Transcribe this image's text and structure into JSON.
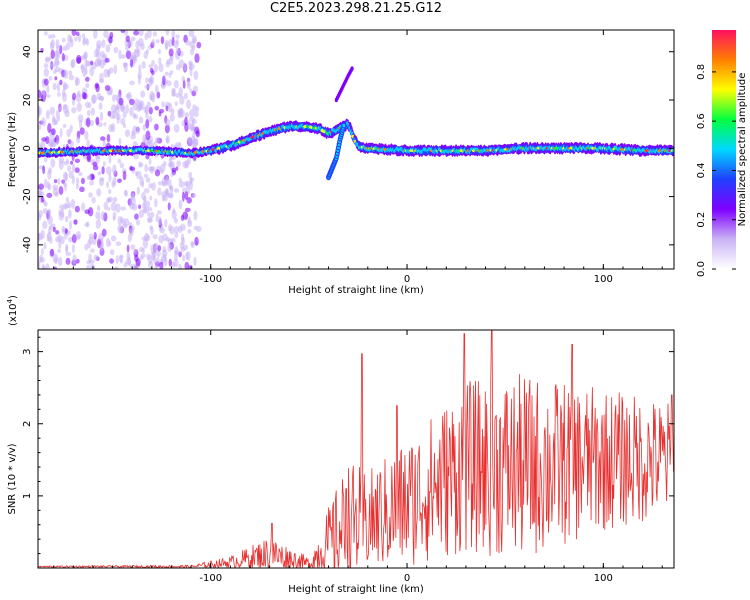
{
  "title": "C2E5.2023.298.21.25.G12",
  "chart_data": [
    {
      "type": "heatmap",
      "xlabel": "Height of straight line (km)",
      "ylabel": "Frequency (Hz)",
      "xlim": [
        -188,
        136
      ],
      "ylim": [
        -50,
        49
      ],
      "x_ticks": [
        -100,
        0,
        100
      ],
      "y_ticks": [
        -40,
        -20,
        0,
        20,
        40
      ],
      "x_tick_labels": [
        "-100",
        "0",
        "100"
      ],
      "y_tick_labels": [
        "-40",
        "-20",
        "0",
        "20",
        "40"
      ],
      "colorbar": {
        "label": "Normalized spectral amplitude",
        "range": [
          0,
          0.97
        ],
        "ticks": [
          0.0,
          0.2,
          0.4,
          0.6,
          0.8
        ],
        "tick_labels": [
          "0.0",
          "0.2",
          "0.4",
          "0.6",
          "0.8"
        ],
        "colors": [
          "#ffffff",
          "#c9b3f5",
          "#7f00ff",
          "#2040ff",
          "#00d8ff",
          "#00ff40",
          "#ffff00",
          "#ff7f00",
          "#ff1060"
        ]
      },
      "trace": {
        "x": [
          -188,
          -160,
          -130,
          -110,
          -100,
          -90,
          -80,
          -70,
          -60,
          -50,
          -44,
          -40,
          -35,
          -30,
          -25,
          -20,
          0,
          20,
          40,
          60,
          80,
          100,
          120,
          136
        ],
        "y": [
          -2,
          -1,
          -1,
          -2,
          -1,
          1,
          4,
          7,
          9,
          9,
          8,
          6,
          8,
          10,
          1,
          0,
          -1,
          -1,
          -1,
          0,
          0,
          0,
          -1,
          -1
        ]
      },
      "hook": {
        "x": [
          -40,
          -38,
          -36,
          -34,
          -32
        ],
        "y": [
          -12,
          -8,
          -4,
          4,
          10
        ]
      },
      "streak": {
        "x": [
          -36,
          -33,
          -30,
          -28
        ],
        "y": [
          20,
          25,
          30,
          33
        ]
      }
    },
    {
      "type": "line",
      "xlabel": "Height of straight line (km)",
      "ylabel": "SNR (10 * v/v)",
      "multiplier": "(x10",
      "multiplier_exp": "4",
      "multiplier_close": ")",
      "xlim": [
        -188,
        136
      ],
      "ylim": [
        0,
        3.3
      ],
      "x_ticks": [
        -100,
        0,
        100
      ],
      "y_ticks": [
        1,
        2,
        3
      ],
      "x_tick_labels": [
        "-100",
        "0",
        "100"
      ],
      "y_tick_labels": [
        "1",
        "2",
        "3"
      ],
      "color": "#e83030",
      "envelope": [
        {
          "x": -188,
          "base": 0.02,
          "amp": 0.01
        },
        {
          "x": -110,
          "base": 0.02,
          "amp": 0.02
        },
        {
          "x": -90,
          "base": 0.08,
          "amp": 0.08
        },
        {
          "x": -70,
          "base": 0.2,
          "amp": 0.25
        },
        {
          "x": -50,
          "base": 0.05,
          "amp": 0.1
        },
        {
          "x": -40,
          "base": 0.35,
          "amp": 0.5
        },
        {
          "x": -30,
          "base": 0.6,
          "amp": 0.9
        },
        {
          "x": -20,
          "base": 0.65,
          "amp": 0.7
        },
        {
          "x": 0,
          "base": 0.9,
          "amp": 0.9
        },
        {
          "x": 30,
          "base": 1.4,
          "amp": 1.2
        },
        {
          "x": 60,
          "base": 1.4,
          "amp": 1.3
        },
        {
          "x": 100,
          "base": 1.5,
          "amp": 1.0
        },
        {
          "x": 136,
          "base": 1.5,
          "amp": 0.8
        }
      ],
      "peaks": [
        {
          "x": -69,
          "y": 0.62
        },
        {
          "x": -31,
          "y": 1.1
        },
        {
          "x": -23,
          "y": 2.97
        },
        {
          "x": -5,
          "y": 2.25
        },
        {
          "x": 29,
          "y": 3.25
        },
        {
          "x": 43,
          "y": 3.35
        },
        {
          "x": 84,
          "y": 3.1
        },
        {
          "x": 135,
          "y": 2.4
        }
      ]
    }
  ]
}
